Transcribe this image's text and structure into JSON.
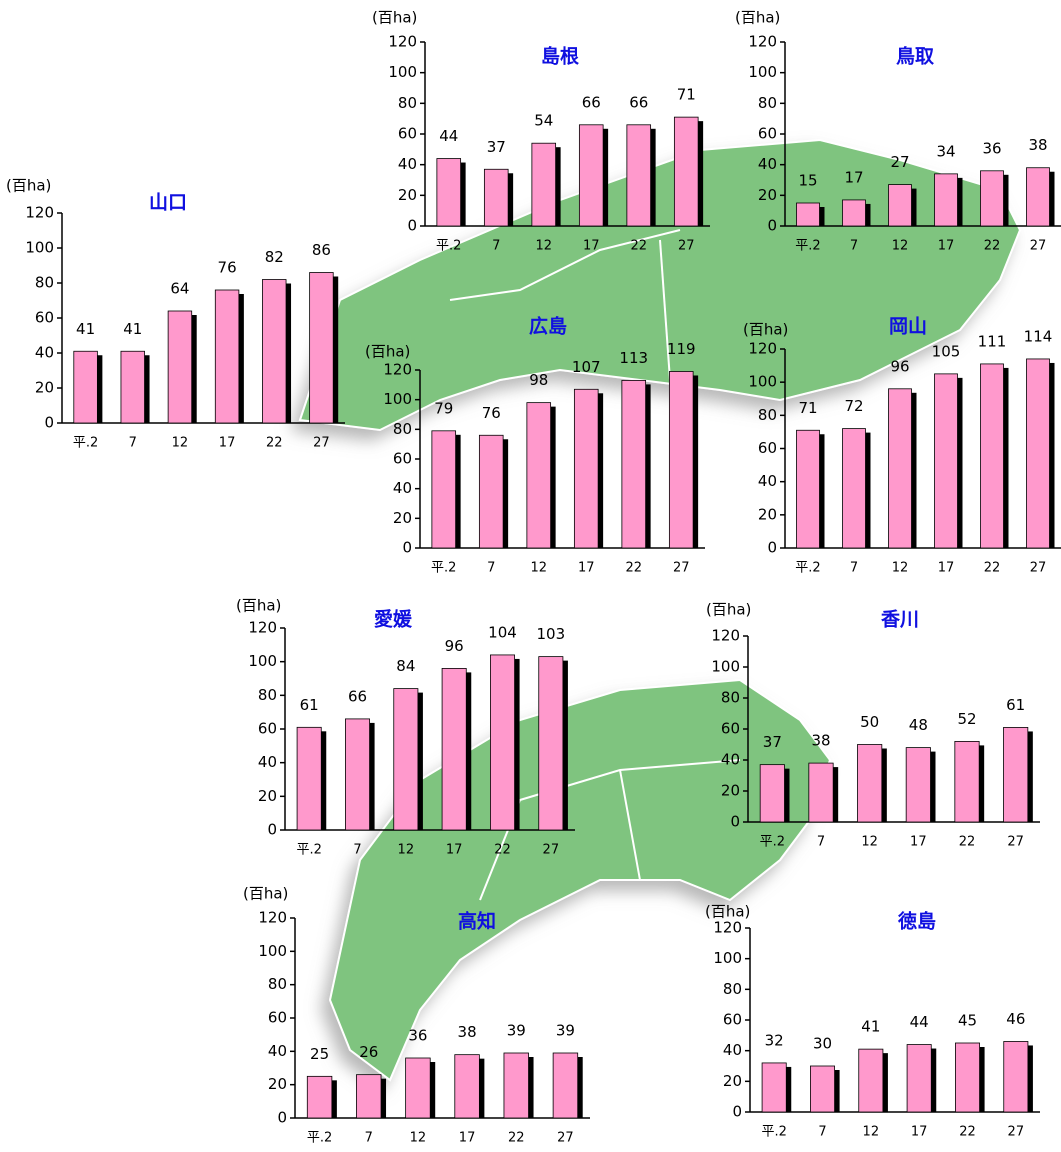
{
  "chart_data": [
    {
      "type": "bar",
      "title": "島根",
      "y_label": "(百ha)",
      "categories": [
        "平.2",
        "7",
        "12",
        "17",
        "22",
        "27"
      ],
      "values": [
        44,
        37,
        54,
        66,
        66,
        71
      ],
      "color": "#ff99cc",
      "ylim": [
        0,
        120
      ],
      "yticks": [
        0,
        20,
        40,
        60,
        80,
        100,
        120
      ]
    },
    {
      "type": "bar",
      "title": "鳥取",
      "y_label": "(百ha)",
      "categories": [
        "平.2",
        "7",
        "12",
        "17",
        "22",
        "27"
      ],
      "values": [
        15,
        17,
        27,
        34,
        36,
        38
      ],
      "color": "#ff99cc",
      "ylim": [
        0,
        120
      ],
      "yticks": [
        0,
        20,
        40,
        60,
        80,
        100,
        120
      ]
    },
    {
      "type": "bar",
      "title": "山口",
      "y_label": "(百ha)",
      "categories": [
        "平.2",
        "7",
        "12",
        "17",
        "22",
        "27"
      ],
      "values": [
        41,
        41,
        64,
        76,
        82,
        86
      ],
      "color": "#ff99cc",
      "ylim": [
        0,
        120
      ],
      "yticks": [
        0,
        20,
        40,
        60,
        80,
        100,
        120
      ]
    },
    {
      "type": "bar",
      "title": "広島",
      "y_label": "(百ha)",
      "categories": [
        "平.2",
        "7",
        "12",
        "17",
        "22",
        "27"
      ],
      "values": [
        79,
        76,
        98,
        107,
        113,
        119
      ],
      "color": "#ff99cc",
      "ylim": [
        0,
        120
      ],
      "yticks": [
        0,
        20,
        40,
        60,
        80,
        100,
        120
      ]
    },
    {
      "type": "bar",
      "title": "岡山",
      "y_label": "(百ha)",
      "categories": [
        "平.2",
        "7",
        "12",
        "17",
        "22",
        "27"
      ],
      "values": [
        71,
        72,
        96,
        105,
        111,
        114
      ],
      "color": "#ff99cc",
      "ylim": [
        0,
        120
      ],
      "yticks": [
        0,
        20,
        40,
        60,
        80,
        100,
        120
      ]
    },
    {
      "type": "bar",
      "title": "愛媛",
      "y_label": "(百ha)",
      "categories": [
        "平.2",
        "7",
        "12",
        "17",
        "22",
        "27"
      ],
      "values": [
        61,
        66,
        84,
        96,
        104,
        103
      ],
      "color": "#ff99cc",
      "ylim": [
        0,
        120
      ],
      "yticks": [
        0,
        20,
        40,
        60,
        80,
        100,
        120
      ]
    },
    {
      "type": "bar",
      "title": "香川",
      "y_label": "(百ha)",
      "categories": [
        "平.2",
        "7",
        "12",
        "17",
        "22",
        "27"
      ],
      "values": [
        37,
        38,
        50,
        48,
        52,
        61
      ],
      "color": "#ff99cc",
      "ylim": [
        0,
        120
      ],
      "yticks": [
        0,
        20,
        40,
        60,
        80,
        100,
        120
      ]
    },
    {
      "type": "bar",
      "title": "高知",
      "y_label": "(百ha)",
      "categories": [
        "平.2",
        "7",
        "12",
        "17",
        "22",
        "27"
      ],
      "values": [
        25,
        26,
        36,
        38,
        39,
        39
      ],
      "color": "#ff99cc",
      "ylim": [
        0,
        120
      ],
      "yticks": [
        0,
        20,
        40,
        60,
        80,
        100,
        120
      ]
    },
    {
      "type": "bar",
      "title": "徳島",
      "y_label": "(百ha)",
      "categories": [
        "平.2",
        "7",
        "12",
        "17",
        "22",
        "27"
      ],
      "values": [
        32,
        30,
        41,
        44,
        45,
        46
      ],
      "color": "#ff99cc",
      "ylim": [
        0,
        120
      ],
      "yticks": [
        0,
        20,
        40,
        60,
        80,
        100,
        120
      ]
    }
  ]
}
